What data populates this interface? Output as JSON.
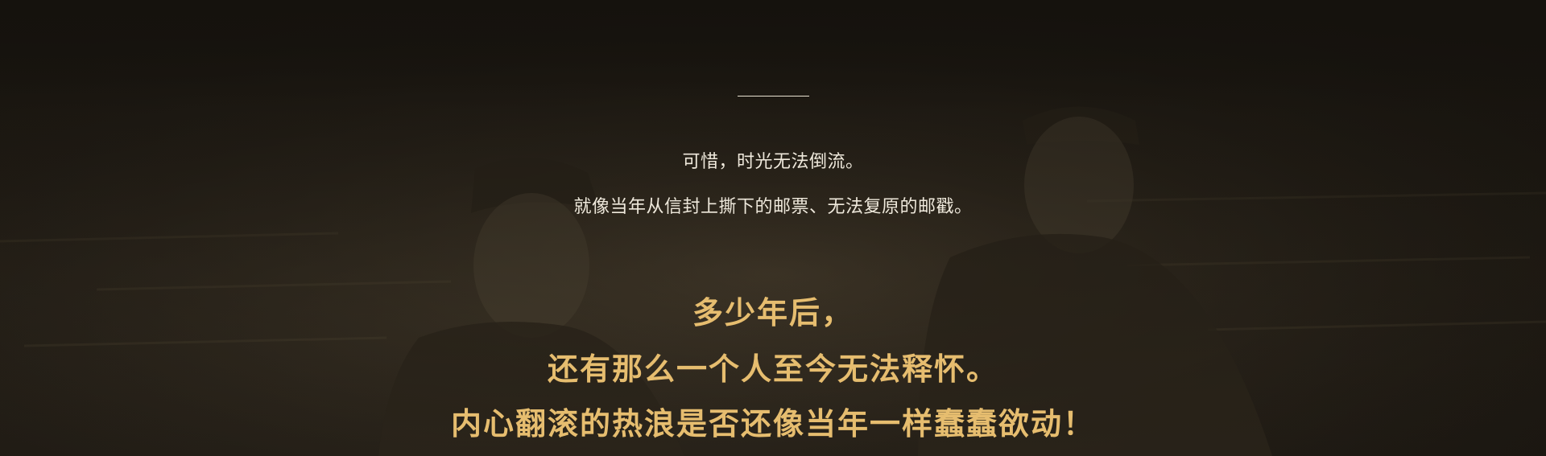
{
  "intro": {
    "line1": "可惜，时光无法倒流。",
    "line2": "就像当年从信封上撕下的邮票、无法复原的邮戳。"
  },
  "highlight": {
    "line1": "多少年后，",
    "line2": "还有那么一个人至今无法释怀。",
    "line3": "内心翻滚的热浪是否还像当年一样蠢蠢欲动！"
  },
  "colors": {
    "background": "#15120d",
    "text_light": "#efe9dc",
    "text_gold": "#e6bd6f"
  }
}
